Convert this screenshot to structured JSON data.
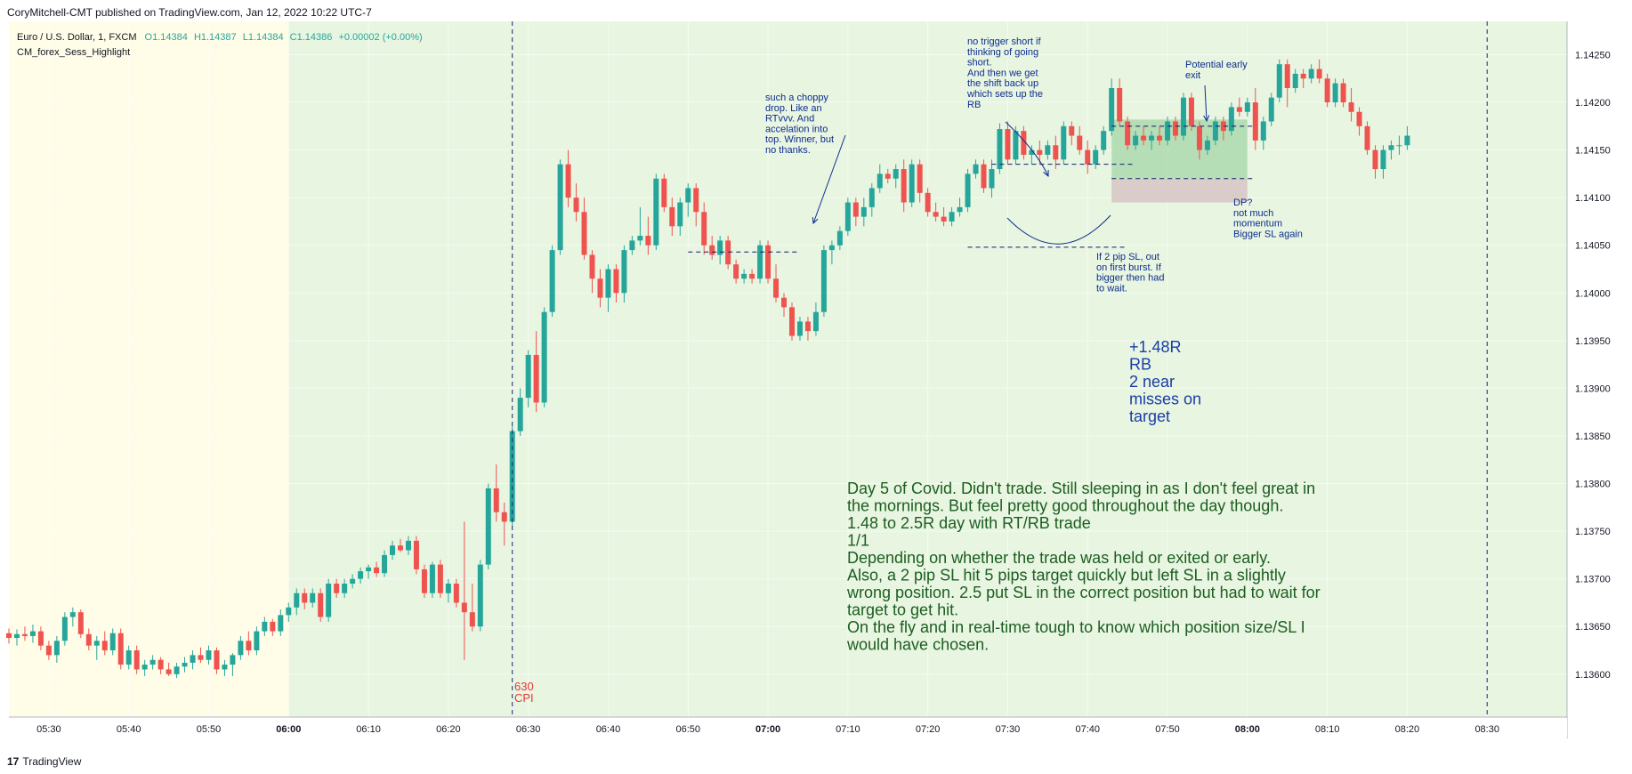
{
  "header": {
    "published": "CoryMitchell-CMT published on TradingView.com, Jan 12, 2022 10:22 UTC-7",
    "symbol": "Euro / U.S. Dollar, 1, FXCM",
    "ohlc": {
      "o": "O1.14384",
      "h": "H1.14387",
      "l": "L1.14384",
      "c": "C1.14386",
      "chg": "+0.00002 (+0.00%)"
    },
    "indicator": "CM_forex_Sess_Highlight"
  },
  "footer": {
    "logo_text": "TradingView",
    "logo_mark": "17"
  },
  "colors": {
    "up": "#26a69a",
    "down": "#ef5350",
    "asia_bg": "#fffde7",
    "london_bg": "#e8f5e1",
    "annotation": "#0d2d8f",
    "note_text": "#1b5e20",
    "cpi": "#e53935",
    "pos_box": "#a5d6a7",
    "risk_box": "#d7c4c4"
  },
  "chart_data": {
    "type": "candlestick",
    "timeframe": "1 minute",
    "symbol": "EURUSD",
    "ylim": [
      1.13555,
      1.14285
    ],
    "y_ticks": [
      1.136,
      1.1365,
      1.137,
      1.1375,
      1.138,
      1.1385,
      1.139,
      1.1395,
      1.14,
      1.1405,
      1.141,
      1.1415,
      1.142,
      1.1425
    ],
    "y_tick_labels": [
      "1.13600",
      "1.13650",
      "1.13700",
      "1.13750",
      "1.13800",
      "1.13850",
      "1.13900",
      "1.13950",
      "1.14000",
      "1.14050",
      "1.14100",
      "1.14150",
      "1.14200",
      "1.14250"
    ],
    "x_start_time": "05:25",
    "x_ticks": [
      "05:30",
      "05:40",
      "05:50",
      "06:00",
      "06:10",
      "06:20",
      "06:30",
      "06:40",
      "06:50",
      "07:00",
      "07:10",
      "07:20",
      "07:30",
      "07:40",
      "07:50",
      "08:00",
      "08:10",
      "08:20",
      "08:30"
    ],
    "bold_x_ticks": [
      "06:00",
      "07:00",
      "08:00"
    ],
    "session_change_time": "06:00",
    "vertical_markers": [
      "06:28",
      "08:30"
    ],
    "candles": [
      [
        1.13643,
        1.13648,
        1.13632,
        1.13638
      ],
      [
        1.13638,
        1.13647,
        1.1363,
        1.13642
      ],
      [
        1.13642,
        1.1365,
        1.13635,
        1.1364
      ],
      [
        1.1364,
        1.13652,
        1.13633,
        1.13645
      ],
      [
        1.13645,
        1.1365,
        1.13625,
        1.1363
      ],
      [
        1.1363,
        1.13635,
        1.13615,
        1.1362
      ],
      [
        1.1362,
        1.1364,
        1.13612,
        1.13635
      ],
      [
        1.13635,
        1.13665,
        1.1363,
        1.1366
      ],
      [
        1.1366,
        1.1367,
        1.1365,
        1.13665
      ],
      [
        1.13665,
        1.13668,
        1.13638,
        1.13642
      ],
      [
        1.13642,
        1.13648,
        1.13625,
        1.1363
      ],
      [
        1.1363,
        1.1364,
        1.13615,
        1.13635
      ],
      [
        1.13635,
        1.13645,
        1.1362,
        1.13625
      ],
      [
        1.13625,
        1.13648,
        1.1362,
        1.13643
      ],
      [
        1.13643,
        1.13648,
        1.13605,
        1.1361
      ],
      [
        1.1361,
        1.1363,
        1.13605,
        1.13625
      ],
      [
        1.13625,
        1.1363,
        1.136,
        1.13605
      ],
      [
        1.13605,
        1.13615,
        1.13598,
        1.1361
      ],
      [
        1.1361,
        1.1362,
        1.13605,
        1.13615
      ],
      [
        1.13615,
        1.13618,
        1.136,
        1.13605
      ],
      [
        1.13605,
        1.13612,
        1.13598,
        1.136
      ],
      [
        1.136,
        1.13612,
        1.13596,
        1.13608
      ],
      [
        1.13608,
        1.13618,
        1.13602,
        1.13612
      ],
      [
        1.13612,
        1.13625,
        1.13605,
        1.1362
      ],
      [
        1.1362,
        1.13628,
        1.13612,
        1.13615
      ],
      [
        1.13615,
        1.1363,
        1.1361,
        1.13625
      ],
      [
        1.13625,
        1.13628,
        1.136,
        1.13605
      ],
      [
        1.13605,
        1.13615,
        1.13598,
        1.1361
      ],
      [
        1.1361,
        1.13622,
        1.13598,
        1.1362
      ],
      [
        1.1362,
        1.1364,
        1.13615,
        1.13635
      ],
      [
        1.13635,
        1.13645,
        1.1362,
        1.13625
      ],
      [
        1.13625,
        1.1365,
        1.1362,
        1.13645
      ],
      [
        1.13645,
        1.1366,
        1.1364,
        1.13655
      ],
      [
        1.13655,
        1.13658,
        1.1364,
        1.13645
      ],
      [
        1.13645,
        1.13668,
        1.1364,
        1.13662
      ],
      [
        1.13662,
        1.13675,
        1.13655,
        1.1367
      ],
      [
        1.1367,
        1.1369,
        1.13662,
        1.13685
      ],
      [
        1.13685,
        1.1369,
        1.13668,
        1.13675
      ],
      [
        1.13675,
        1.1369,
        1.1367,
        1.13685
      ],
      [
        1.13685,
        1.1369,
        1.13655,
        1.1366
      ],
      [
        1.1366,
        1.137,
        1.13655,
        1.13695
      ],
      [
        1.13695,
        1.137,
        1.1368,
        1.13685
      ],
      [
        1.13685,
        1.137,
        1.1368,
        1.13695
      ],
      [
        1.13695,
        1.13705,
        1.1369,
        1.137
      ],
      [
        1.137,
        1.13712,
        1.13695,
        1.13708
      ],
      [
        1.13708,
        1.13715,
        1.137,
        1.13712
      ],
      [
        1.13712,
        1.13718,
        1.13702,
        1.13706
      ],
      [
        1.13706,
        1.1373,
        1.13702,
        1.13725
      ],
      [
        1.13725,
        1.1374,
        1.1372,
        1.13735
      ],
      [
        1.13735,
        1.13742,
        1.13728,
        1.1373
      ],
      [
        1.1373,
        1.13745,
        1.13725,
        1.1374
      ],
      [
        1.1374,
        1.13745,
        1.13705,
        1.1371
      ],
      [
        1.1371,
        1.13715,
        1.1368,
        1.13685
      ],
      [
        1.13685,
        1.13718,
        1.1368,
        1.13715
      ],
      [
        1.13715,
        1.1372,
        1.1368,
        1.13685
      ],
      [
        1.13685,
        1.137,
        1.13675,
        1.13695
      ],
      [
        1.13695,
        1.137,
        1.1367,
        1.13675
      ],
      [
        1.13675,
        1.1376,
        1.13615,
        1.13665
      ],
      [
        1.13665,
        1.13695,
        1.13645,
        1.1365
      ],
      [
        1.1365,
        1.1372,
        1.13645,
        1.13715
      ],
      [
        1.13715,
        1.138,
        1.1371,
        1.13795
      ],
      [
        1.13795,
        1.1382,
        1.1376,
        1.1377
      ],
      [
        1.1377,
        1.1378,
        1.13735,
        1.1376
      ],
      [
        1.1376,
        1.1386,
        1.13755,
        1.13855
      ],
      [
        1.13855,
        1.139,
        1.1385,
        1.1389
      ],
      [
        1.1389,
        1.1394,
        1.1388,
        1.13935
      ],
      [
        1.13935,
        1.1396,
        1.13875,
        1.13885
      ],
      [
        1.13885,
        1.13985,
        1.1388,
        1.1398
      ],
      [
        1.1398,
        1.1405,
        1.13975,
        1.14045
      ],
      [
        1.14045,
        1.1414,
        1.1404,
        1.14135
      ],
      [
        1.14135,
        1.1415,
        1.1409,
        1.141
      ],
      [
        1.141,
        1.14115,
        1.14075,
        1.14085
      ],
      [
        1.14085,
        1.141,
        1.14035,
        1.1404
      ],
      [
        1.1404,
        1.14045,
        1.14,
        1.14015
      ],
      [
        1.14015,
        1.14025,
        1.13985,
        1.13995
      ],
      [
        1.13995,
        1.1403,
        1.1398,
        1.14025
      ],
      [
        1.14025,
        1.1403,
        1.1399,
        1.14
      ],
      [
        1.14,
        1.1405,
        1.1399,
        1.14045
      ],
      [
        1.14045,
        1.1406,
        1.1404,
        1.14055
      ],
      [
        1.14055,
        1.1409,
        1.1405,
        1.1406
      ],
      [
        1.1406,
        1.1408,
        1.1404,
        1.1405
      ],
      [
        1.1405,
        1.14125,
        1.14045,
        1.1412
      ],
      [
        1.1412,
        1.14125,
        1.14085,
        1.1409
      ],
      [
        1.1409,
        1.141,
        1.1406,
        1.1407
      ],
      [
        1.1407,
        1.141,
        1.1406,
        1.14095
      ],
      [
        1.14095,
        1.14115,
        1.1408,
        1.1411
      ],
      [
        1.1411,
        1.14115,
        1.1407,
        1.14085
      ],
      [
        1.14085,
        1.14095,
        1.1404,
        1.1405
      ],
      [
        1.1405,
        1.1406,
        1.14035,
        1.1404
      ],
      [
        1.1404,
        1.1406,
        1.1403,
        1.14055
      ],
      [
        1.14055,
        1.1406,
        1.14025,
        1.1403
      ],
      [
        1.1403,
        1.14035,
        1.1401,
        1.14015
      ],
      [
        1.14015,
        1.14025,
        1.1401,
        1.1402
      ],
      [
        1.1402,
        1.14025,
        1.1401,
        1.14015
      ],
      [
        1.14015,
        1.14055,
        1.1401,
        1.1405
      ],
      [
        1.1405,
        1.14055,
        1.1401,
        1.14015
      ],
      [
        1.14015,
        1.1403,
        1.1399,
        1.13995
      ],
      [
        1.13995,
        1.14,
        1.13975,
        1.13985
      ],
      [
        1.13985,
        1.1399,
        1.1395,
        1.13955
      ],
      [
        1.13955,
        1.13975,
        1.1395,
        1.1397
      ],
      [
        1.1397,
        1.13975,
        1.1395,
        1.1396
      ],
      [
        1.1396,
        1.1399,
        1.13955,
        1.1398
      ],
      [
        1.1398,
        1.1405,
        1.13975,
        1.14045
      ],
      [
        1.14045,
        1.14055,
        1.1403,
        1.1405
      ],
      [
        1.1405,
        1.1407,
        1.14045,
        1.14065
      ],
      [
        1.14065,
        1.141,
        1.1406,
        1.14095
      ],
      [
        1.14095,
        1.141,
        1.1407,
        1.1408
      ],
      [
        1.1408,
        1.141,
        1.1407,
        1.1409
      ],
      [
        1.1409,
        1.14115,
        1.1408,
        1.1411
      ],
      [
        1.1411,
        1.14135,
        1.14105,
        1.14125
      ],
      [
        1.14125,
        1.1413,
        1.14115,
        1.1412
      ],
      [
        1.1412,
        1.14135,
        1.1411,
        1.1413
      ],
      [
        1.1413,
        1.1414,
        1.14085,
        1.14095
      ],
      [
        1.14095,
        1.1414,
        1.1409,
        1.14135
      ],
      [
        1.14135,
        1.1414,
        1.14095,
        1.14105
      ],
      [
        1.14105,
        1.1411,
        1.1408,
        1.14085
      ],
      [
        1.14085,
        1.14095,
        1.14075,
        1.1408
      ],
      [
        1.1408,
        1.1409,
        1.1407,
        1.14075
      ],
      [
        1.14075,
        1.1409,
        1.1407,
        1.14085
      ],
      [
        1.14085,
        1.141,
        1.1408,
        1.1409
      ],
      [
        1.1409,
        1.1413,
        1.14085,
        1.14125
      ],
      [
        1.14125,
        1.1414,
        1.1412,
        1.14135
      ],
      [
        1.14135,
        1.1414,
        1.14105,
        1.1411
      ],
      [
        1.1411,
        1.1414,
        1.141,
        1.1413
      ],
      [
        1.1413,
        1.14178,
        1.14125,
        1.14172
      ],
      [
        1.14172,
        1.1418,
        1.14135,
        1.1414
      ],
      [
        1.1414,
        1.14175,
        1.14135,
        1.1417
      ],
      [
        1.1417,
        1.14175,
        1.1414,
        1.14145
      ],
      [
        1.14145,
        1.14155,
        1.14135,
        1.1415
      ],
      [
        1.1415,
        1.1416,
        1.14135,
        1.14145
      ],
      [
        1.14145,
        1.1416,
        1.1414,
        1.14155
      ],
      [
        1.14155,
        1.14165,
        1.1413,
        1.1414
      ],
      [
        1.1414,
        1.1418,
        1.14135,
        1.14175
      ],
      [
        1.14175,
        1.1418,
        1.14155,
        1.14165
      ],
      [
        1.14165,
        1.14175,
        1.14145,
        1.1415
      ],
      [
        1.1415,
        1.1416,
        1.14125,
        1.14135
      ],
      [
        1.14135,
        1.14155,
        1.1413,
        1.1415
      ],
      [
        1.1415,
        1.14175,
        1.14145,
        1.1417
      ],
      [
        1.1417,
        1.14225,
        1.14165,
        1.14215
      ],
      [
        1.14215,
        1.14225,
        1.14175,
        1.1418
      ],
      [
        1.1418,
        1.14185,
        1.1415,
        1.14155
      ],
      [
        1.14155,
        1.1417,
        1.1415,
        1.14165
      ],
      [
        1.14165,
        1.14175,
        1.14155,
        1.1416
      ],
      [
        1.1416,
        1.1417,
        1.1415,
        1.14165
      ],
      [
        1.14165,
        1.14175,
        1.14155,
        1.1416
      ],
      [
        1.1416,
        1.14185,
        1.14155,
        1.1418
      ],
      [
        1.1418,
        1.14185,
        1.1416,
        1.14165
      ],
      [
        1.14165,
        1.1421,
        1.1416,
        1.14205
      ],
      [
        1.14205,
        1.1421,
        1.1417,
        1.14175
      ],
      [
        1.14175,
        1.1418,
        1.1414,
        1.1415
      ],
      [
        1.1415,
        1.14165,
        1.14145,
        1.1416
      ],
      [
        1.1416,
        1.14185,
        1.14155,
        1.1418
      ],
      [
        1.1418,
        1.14185,
        1.1416,
        1.1417
      ],
      [
        1.1417,
        1.142,
        1.14165,
        1.14195
      ],
      [
        1.14195,
        1.14205,
        1.14185,
        1.1419
      ],
      [
        1.1419,
        1.14205,
        1.14185,
        1.142
      ],
      [
        1.142,
        1.14215,
        1.1415,
        1.1416
      ],
      [
        1.1416,
        1.14185,
        1.1415,
        1.1418
      ],
      [
        1.1418,
        1.1421,
        1.14175,
        1.14205
      ],
      [
        1.14205,
        1.14245,
        1.142,
        1.1424
      ],
      [
        1.1424,
        1.14245,
        1.14195,
        1.14215
      ],
      [
        1.14215,
        1.14235,
        1.1421,
        1.1423
      ],
      [
        1.1423,
        1.14235,
        1.14215,
        1.14225
      ],
      [
        1.14225,
        1.1424,
        1.1422,
        1.14235
      ],
      [
        1.14235,
        1.14245,
        1.1422,
        1.14225
      ],
      [
        1.14225,
        1.1423,
        1.14195,
        1.142
      ],
      [
        1.142,
        1.14225,
        1.14195,
        1.1422
      ],
      [
        1.1422,
        1.14225,
        1.14195,
        1.142
      ],
      [
        1.142,
        1.14215,
        1.1418,
        1.1419
      ],
      [
        1.1419,
        1.14195,
        1.14165,
        1.14175
      ],
      [
        1.14175,
        1.1418,
        1.14145,
        1.1415
      ],
      [
        1.1415,
        1.14155,
        1.1412,
        1.1413
      ],
      [
        1.1413,
        1.14155,
        1.1412,
        1.1415
      ],
      [
        1.1415,
        1.1416,
        1.1414,
        1.14155
      ],
      [
        1.14155,
        1.14165,
        1.14145,
        1.14155
      ],
      [
        1.14155,
        1.14175,
        1.1415,
        1.14165
      ]
    ],
    "dashed_levels": [
      {
        "y": 1.14043,
        "from": "06:50",
        "to": "07:04"
      },
      {
        "y": 1.14135,
        "from": "07:28",
        "to": "07:46"
      },
      {
        "y": 1.14048,
        "from": "07:25",
        "to": "07:45"
      },
      {
        "y": 1.14175,
        "from": "07:43",
        "to": "08:01"
      },
      {
        "y": 1.1412,
        "from": "07:43",
        "to": "08:01"
      }
    ],
    "position": {
      "from": "07:43",
      "to": "08:00",
      "entry": 1.1412,
      "target": 1.14182,
      "stop": 1.14095
    },
    "annotations": {
      "choppy": [
        "such a choppy",
        "drop. Like an",
        "RTvvv. And",
        "accelation into",
        "top. Winner, but",
        "no thanks."
      ],
      "no_trigger": [
        "no trigger short if",
        "thinking of going",
        "short.",
        "And then we get",
        "the shift back up",
        "which sets up the",
        "RB"
      ],
      "early_exit": [
        "Potential early",
        "exit"
      ],
      "dp": [
        "DP?",
        "not much",
        "momentum",
        "Bigger SL again"
      ],
      "sl": [
        "If 2 pip SL, out",
        "on first burst. If",
        "bigger then had",
        "to wait."
      ],
      "result": [
        "+1.48R",
        "RB",
        "2 near",
        "misses on",
        "target"
      ],
      "cpi": [
        "630",
        "CPI"
      ],
      "notes": [
        "Day 5 of Covid. Didn't trade. Still sleeping in as I don't feel great in",
        "the mornings. But feel pretty good throughout the day though.",
        "1.48 to 2.5R day with RT/RB trade",
        "1/1",
        "Depending on whether the trade was held or exited or early.",
        "Also, a 2 pip SL hit 5 pips target quickly but left SL in a slightly",
        "wrong position. 2.5 put SL in the correct position but had to wait for",
        "target to get hit.",
        "On the fly and in real-time tough to know which position size/SL I",
        "would have chosen."
      ]
    }
  }
}
